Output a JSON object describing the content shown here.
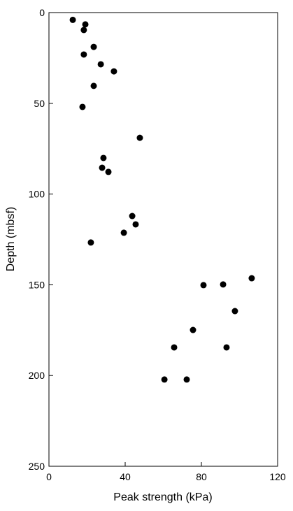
{
  "chart_data": {
    "type": "scatter",
    "xlabel": "Peak strength (kPa)",
    "ylabel": "Depth (mbsf)",
    "x": [
      12.5,
      19.1,
      18.3,
      23.5,
      18.3,
      27.2,
      34.1,
      23.5,
      17.6,
      47.7,
      28.6,
      27.9,
      31.2,
      43.7,
      45.5,
      39.3,
      22.0,
      106.4,
      81.1,
      91.4,
      97.6,
      75.6,
      65.7,
      93.2,
      60.6,
      72.3
    ],
    "values": [
      4,
      6.5,
      9.6,
      18.9,
      23.1,
      28.5,
      32.4,
      40.4,
      52,
      69,
      80.1,
      85.5,
      87.8,
      112.1,
      116.7,
      121.3,
      126.7,
      146.4,
      150.2,
      149.8,
      164.5,
      174.9,
      184.5,
      184.5,
      202.2,
      202.2
    ],
    "color": "#000000",
    "xlim": [
      0,
      120
    ],
    "xticks": [
      0,
      40,
      80,
      120
    ],
    "ylim": [
      250,
      0
    ],
    "yticks": [
      0,
      50,
      100,
      150,
      200,
      250
    ]
  }
}
